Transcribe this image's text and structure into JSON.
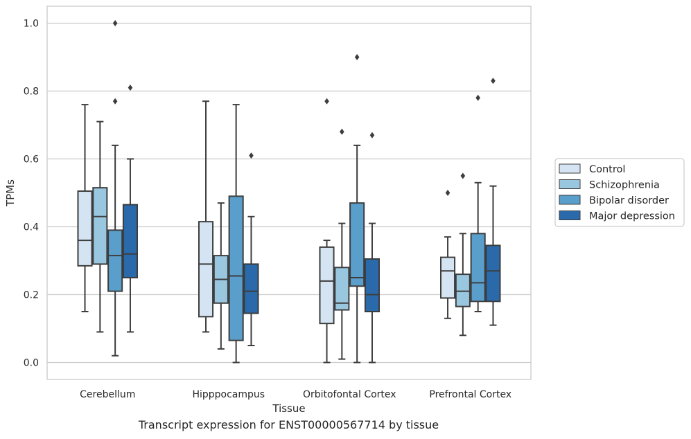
{
  "caption": "Transcript expression for ENST00000567714 by tissue",
  "chart_data": {
    "type": "boxplot",
    "xlabel": "Tissue",
    "ylabel": "TPMs",
    "ylim": [
      -0.05,
      1.05
    ],
    "yticks": [
      0.0,
      0.2,
      0.4,
      0.6,
      0.8,
      1.0
    ],
    "ytick_labels": [
      "0.0",
      "0.2",
      "0.4",
      "0.6",
      "0.8",
      "1.0"
    ],
    "grid": "horizontal",
    "legend_position": "right",
    "categories": [
      "Cerebellum",
      "Hipppocampus",
      "Orbitofontal Cortex",
      "Prefrontal Cortex"
    ],
    "series": [
      {
        "name": "Control",
        "color": "#d4e4f2",
        "boxes": [
          {
            "low": 0.15,
            "q1": 0.285,
            "median": 0.36,
            "q3": 0.505,
            "high": 0.76,
            "outliers": []
          },
          {
            "low": 0.09,
            "q1": 0.135,
            "median": 0.29,
            "q3": 0.415,
            "high": 0.77,
            "outliers": []
          },
          {
            "low": 0.0,
            "q1": 0.115,
            "median": 0.24,
            "q3": 0.34,
            "high": 0.36,
            "outliers": [
              0.77
            ]
          },
          {
            "low": 0.13,
            "q1": 0.19,
            "median": 0.27,
            "q3": 0.31,
            "high": 0.37,
            "outliers": [
              0.5
            ]
          }
        ]
      },
      {
        "name": "Schizophrenia",
        "color": "#9ac7e0",
        "boxes": [
          {
            "low": 0.09,
            "q1": 0.29,
            "median": 0.43,
            "q3": 0.515,
            "high": 0.71,
            "outliers": []
          },
          {
            "low": 0.04,
            "q1": 0.175,
            "median": 0.245,
            "q3": 0.315,
            "high": 0.47,
            "outliers": []
          },
          {
            "low": 0.01,
            "q1": 0.155,
            "median": 0.175,
            "q3": 0.28,
            "high": 0.41,
            "outliers": [
              0.68
            ]
          },
          {
            "low": 0.08,
            "q1": 0.165,
            "median": 0.21,
            "q3": 0.26,
            "high": 0.38,
            "outliers": [
              0.55
            ]
          }
        ]
      },
      {
        "name": "Bipolar disorder",
        "color": "#5a9fcc",
        "boxes": [
          {
            "low": 0.02,
            "q1": 0.21,
            "median": 0.315,
            "q3": 0.39,
            "high": 0.64,
            "outliers": [
              0.77,
              1.0
            ]
          },
          {
            "low": 0.0,
            "q1": 0.065,
            "median": 0.255,
            "q3": 0.49,
            "high": 0.76,
            "outliers": []
          },
          {
            "low": 0.0,
            "q1": 0.225,
            "median": 0.25,
            "q3": 0.47,
            "high": 0.64,
            "outliers": [
              0.9
            ]
          },
          {
            "low": 0.15,
            "q1": 0.18,
            "median": 0.235,
            "q3": 0.38,
            "high": 0.53,
            "outliers": [
              0.78
            ]
          }
        ]
      },
      {
        "name": "Major depression",
        "color": "#2a6aab",
        "boxes": [
          {
            "low": 0.09,
            "q1": 0.25,
            "median": 0.32,
            "q3": 0.465,
            "high": 0.6,
            "outliers": [
              0.81
            ]
          },
          {
            "low": 0.05,
            "q1": 0.145,
            "median": 0.21,
            "q3": 0.29,
            "high": 0.43,
            "outliers": [
              0.61
            ]
          },
          {
            "low": 0.0,
            "q1": 0.15,
            "median": 0.2,
            "q3": 0.305,
            "high": 0.41,
            "outliers": [
              0.67
            ]
          },
          {
            "low": 0.11,
            "q1": 0.18,
            "median": 0.27,
            "q3": 0.345,
            "high": 0.52,
            "outliers": [
              0.83
            ]
          }
        ]
      }
    ]
  }
}
